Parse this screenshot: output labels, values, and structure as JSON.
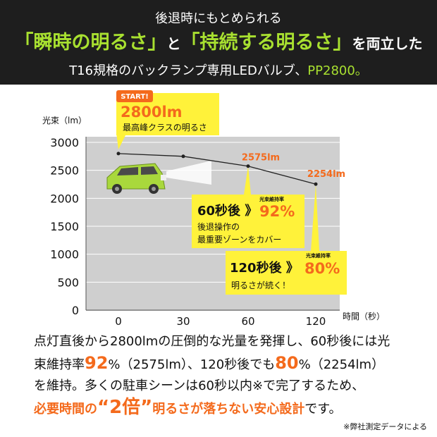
{
  "header": {
    "line1": "後退時にもとめられる",
    "line2_q1": "「瞬時の明るさ」",
    "line2_to": "と",
    "line2_q2": "「持続する明るさ」",
    "line2_end": "を両立した",
    "line3_pre": "T16規格のバックランプ専用LEDバルブ、",
    "line3_model": "PP2800。"
  },
  "chart_data": {
    "type": "line",
    "ylabel": "光束（lm）",
    "xlabel": "時間（秒）",
    "x": [
      0,
      30,
      60,
      120
    ],
    "y": [
      2800,
      2750,
      2575,
      2254
    ],
    "yticks": [
      0,
      500,
      1000,
      1500,
      2000,
      2500,
      3000
    ],
    "ylim": [
      0,
      3000
    ],
    "annotations": {
      "v60": "2575lm",
      "v120": "2254lm",
      "start_badge": "START!",
      "start_value": "2800lm",
      "start_desc": "最高峰クラスの明るさ",
      "c60_tag": "光束維持率",
      "c60_main": "60秒後 》",
      "c60_pct": "92%",
      "c60_line1": "後退操作の",
      "c60_line2": "最重要ゾーンをカバー",
      "c120_tag": "光束維持率",
      "c120_main": "120秒後 》",
      "c120_pct": "80%",
      "c120_desc": "明るさが続く！"
    }
  },
  "colors": {
    "accent_orange": "#f46a1c",
    "callout_yellow": "#fff23a",
    "brand_green": "#a8e030",
    "car_green": "#a9d83c"
  },
  "body": {
    "p1": "点灯直後から2800lmの圧倒的な光量を発揮し、60秒後には光",
    "p2a": "束維持率",
    "p2pct1": "92",
    "p2b": "%（2575lm）、120秒後でも",
    "p2pct2": "80",
    "p2c": "%（2254lm）",
    "p3": "を維持。多くの駐車シーンは60秒以内※で完了するため、",
    "p4a": "必要時間の",
    "p4b": "“2倍”",
    "p4c": "明るさが落ちない安心設計",
    "p4d": "です。",
    "note": "※弊社測定データによる"
  }
}
